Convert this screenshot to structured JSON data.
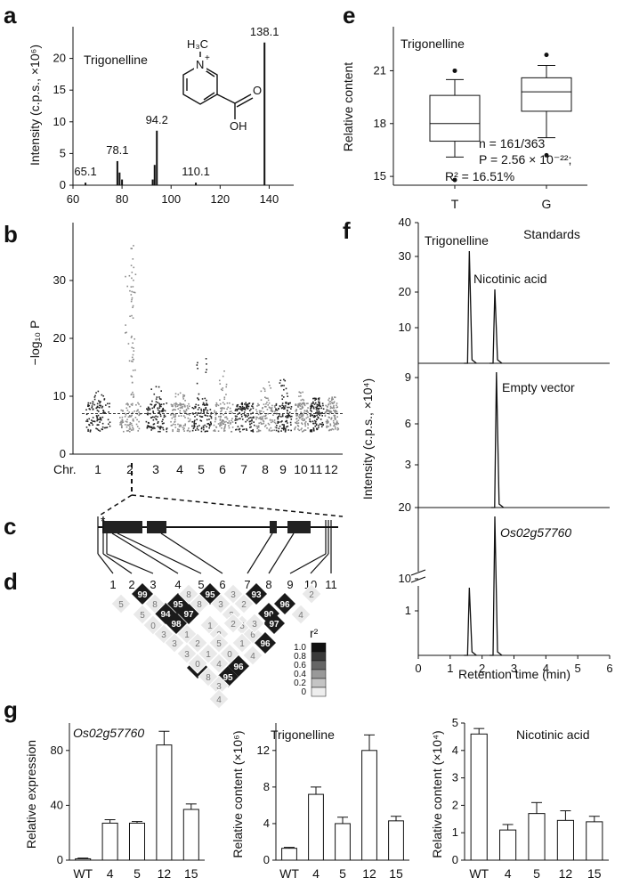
{
  "panels": {
    "a": "a",
    "b": "b",
    "c": "c",
    "d": "d",
    "e": "e",
    "f": "f",
    "g": "g"
  },
  "chart_data": [
    {
      "panel": "a",
      "type": "bar",
      "title": "Trigonelline",
      "ylabel": "Intensity (c.p.s., ×10⁶)",
      "xlim": [
        60,
        150
      ],
      "ylim": [
        0,
        25
      ],
      "xticks": [
        "60",
        "80",
        "100",
        "120",
        "140"
      ],
      "yticks": [
        "0",
        "5",
        "10",
        "15",
        "20"
      ],
      "peaks": [
        {
          "x": 65.1,
          "y": 0.4
        },
        {
          "x": 78.1,
          "y": 3.8
        },
        {
          "x": 79.0,
          "y": 2.0
        },
        {
          "x": 80.0,
          "y": 0.9
        },
        {
          "x": 92.5,
          "y": 0.9
        },
        {
          "x": 93.3,
          "y": 3.2
        },
        {
          "x": 94.2,
          "y": 8.6
        },
        {
          "x": 110.1,
          "y": 0.4
        },
        {
          "x": 138.1,
          "y": 22.5
        }
      ],
      "peak_labels": [
        {
          "text": "65.1",
          "x": 65.1,
          "y": 0.4
        },
        {
          "text": "78.1",
          "x": 78.1,
          "y": 3.8
        },
        {
          "text": "94.2",
          "x": 94.2,
          "y": 8.6
        },
        {
          "text": "110.1",
          "x": 110.1,
          "y": 0.4
        },
        {
          "text": "138.1",
          "x": 138.1,
          "y": 22.5
        }
      ],
      "structure_labels": {
        "methyl": "H₃C",
        "charge": "+",
        "nitrogen": "N",
        "oh": "OH",
        "oxygen": "O"
      }
    },
    {
      "panel": "b",
      "type": "scatter",
      "ylabel": "−log₁₀ P",
      "ylim": [
        0,
        38
      ],
      "yticks": [
        "0",
        "10",
        "20",
        "30"
      ],
      "xlabel": "Chr.",
      "chromosomes": [
        "1",
        "2",
        "3",
        "4",
        "5",
        "6",
        "7",
        "8",
        "9",
        "10",
        "11",
        "12"
      ],
      "threshold": 7.0,
      "colors": {
        "odd": "#222222",
        "even": "#8c8c8c"
      },
      "peak_chr": "2",
      "peak_value": 37
    },
    {
      "panel": "c",
      "type": "gene-model",
      "marker": "*"
    },
    {
      "panel": "d",
      "type": "heatmap",
      "snp_labels": [
        "1",
        "2",
        "3",
        "4",
        "5",
        "6",
        "7",
        "8",
        "9",
        "10",
        "11"
      ],
      "legend_title": "r²",
      "legend_ticks": [
        "1.0",
        "0.8",
        "0.6",
        "0.4",
        "0.2",
        "0"
      ],
      "cell_values": [
        "99",
        "95",
        "93",
        "96",
        "94",
        "95",
        "97",
        "98",
        "90",
        "97",
        "96",
        "96",
        "95",
        "5",
        "8",
        "8",
        "3",
        "3",
        "2",
        "2",
        "0",
        "3",
        "4",
        "6",
        "3",
        "1",
        "2",
        "1",
        "5",
        "1",
        "4",
        "3",
        "2",
        "5",
        "0",
        "2",
        "5",
        "0",
        "3",
        "4",
        "0",
        "5",
        "1",
        "2",
        "0",
        "3",
        "8",
        "4",
        "0",
        "3",
        "4"
      ]
    },
    {
      "panel": "e",
      "type": "box",
      "title": "Trigonelline",
      "ylabel": "Relative content",
      "ylim": [
        14.5,
        23.5
      ],
      "yticks": [
        "15",
        "18",
        "21"
      ],
      "categories": [
        "T",
        "G"
      ],
      "boxes": [
        {
          "name": "T",
          "whisker_low": 16.1,
          "q1": 17.0,
          "median": 18.0,
          "q3": 19.6,
          "whisker_high": 20.5,
          "outliers": [
            21.0,
            14.8
          ]
        },
        {
          "name": "G",
          "whisker_low": 17.2,
          "q1": 18.7,
          "median": 19.8,
          "q3": 20.6,
          "whisker_high": 21.3,
          "outliers": [
            21.9,
            16.2
          ]
        }
      ],
      "annotations": [
        "n = 161/363",
        "P = 2.56 × 10⁻²²;",
        "R² = 16.51%"
      ]
    },
    {
      "panel": "f",
      "type": "line",
      "ylabel": "Intensity (c.p.s., ×10⁴)",
      "xlabel": "Retention time (min)",
      "xlim": [
        0,
        6
      ],
      "xticks": [
        "0",
        "1",
        "2",
        "3",
        "4",
        "5",
        "6"
      ],
      "subplots": [
        {
          "title": "Standards",
          "ylim": [
            0,
            40
          ],
          "yticks": [
            "10",
            "20",
            "30",
            "40"
          ],
          "peak_labels": [
            "Trigonelline",
            "Nicotinic acid"
          ],
          "peaks": [
            {
              "x": 1.6,
              "y": 31
            },
            {
              "x": 2.4,
              "y": 20
            }
          ]
        },
        {
          "title": "Empty vector",
          "ylim": [
            0,
            10
          ],
          "yticks": [
            "3",
            "6",
            "9"
          ],
          "peaks": [
            {
              "x": 2.45,
              "y": 9.3
            }
          ]
        },
        {
          "title": "Os02g57760",
          "ylim": [
            0,
            20
          ],
          "yticks": [
            "1",
            "10",
            "20"
          ],
          "peaks": [
            {
              "x": 1.6,
              "y": 1.4
            },
            {
              "x": 2.4,
              "y": 20
            }
          ]
        }
      ]
    },
    {
      "panel": "g1",
      "type": "bar",
      "title": "Os02g57760",
      "ylabel": "Relative expression",
      "categories": [
        "WT",
        "4",
        "5",
        "12",
        "15"
      ],
      "values": [
        1,
        27,
        27,
        84,
        37
      ],
      "errors": [
        0.5,
        2.5,
        1.2,
        10,
        4
      ],
      "ylim": [
        0,
        100
      ],
      "yticks": [
        "0",
        "40",
        "80"
      ]
    },
    {
      "panel": "g2",
      "type": "bar",
      "title": "Trigonelline",
      "ylabel": "Relative content (×10⁶)",
      "categories": [
        "WT",
        "4",
        "5",
        "12",
        "15"
      ],
      "values": [
        1.3,
        7.2,
        4.0,
        12.0,
        4.3
      ],
      "errors": [
        0.1,
        0.8,
        0.7,
        1.7,
        0.5
      ],
      "ylim": [
        0,
        15
      ],
      "yticks": [
        "0",
        "4",
        "8",
        "12"
      ]
    },
    {
      "panel": "g3",
      "type": "bar",
      "title": "Nicotinic acid",
      "ylabel": "Relative content (×10⁴)",
      "categories": [
        "WT",
        "4",
        "5",
        "12",
        "15"
      ],
      "values": [
        4.6,
        1.1,
        1.7,
        1.45,
        1.4
      ],
      "errors": [
        0.2,
        0.2,
        0.4,
        0.35,
        0.2
      ],
      "ylim": [
        0,
        5
      ],
      "yticks": [
        "0",
        "1",
        "2",
        "3",
        "4",
        "5"
      ]
    }
  ]
}
